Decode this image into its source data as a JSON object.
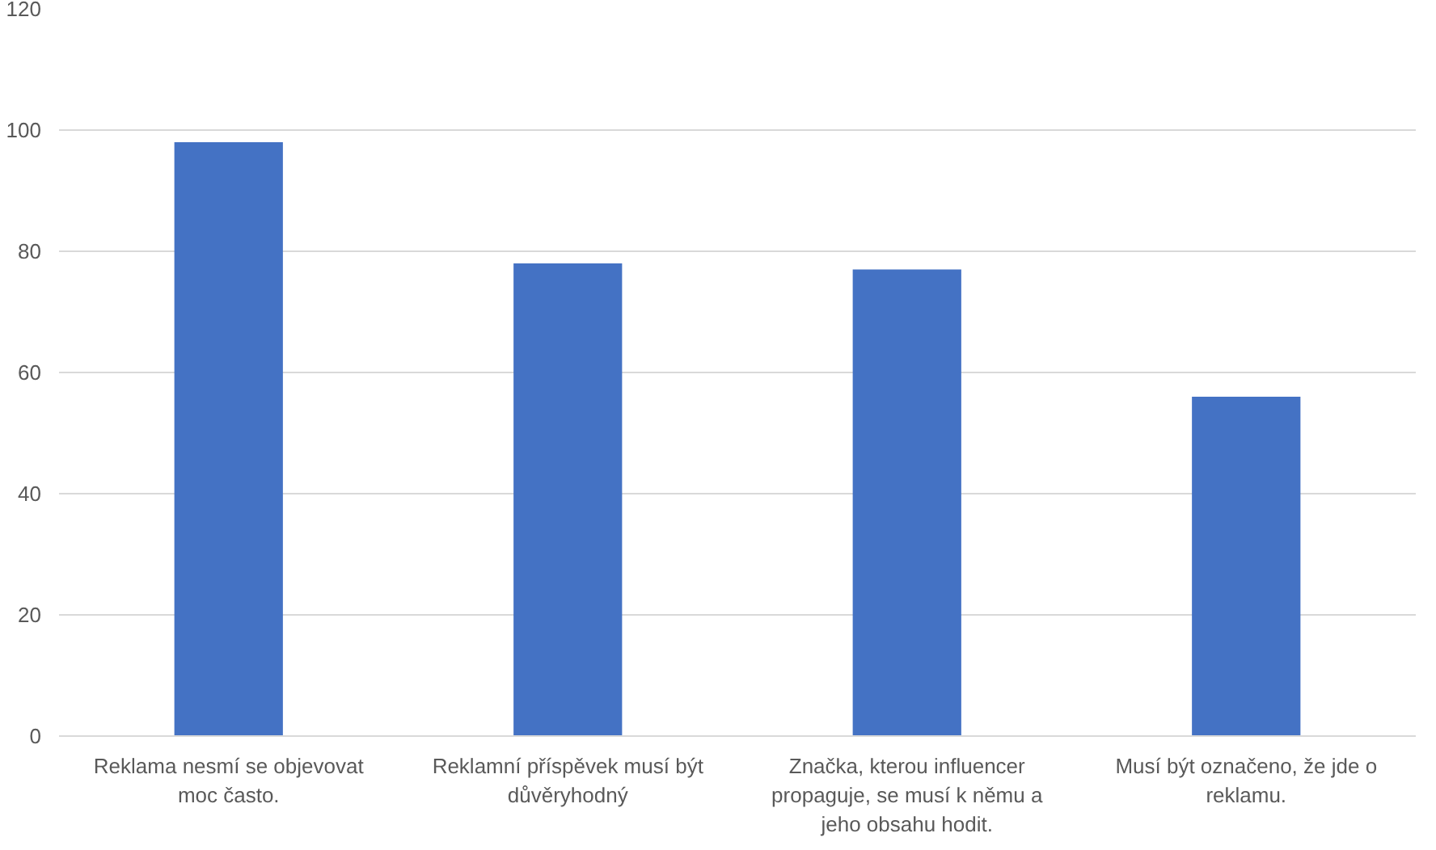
{
  "chart_data": {
    "type": "bar",
    "categories": [
      "Reklama nesmí se objevovat moc často.",
      "Reklamní příspěvek musí být důvěryhodný",
      "Značka, kterou influencer propaguje, se musí k němu a jeho obsahu hodit.",
      "Musí být označeno, že jde o reklamu."
    ],
    "values": [
      98,
      78,
      77,
      56
    ],
    "color": "#4472c4",
    "ylim": [
      0,
      120
    ],
    "yticks": [
      0,
      20,
      40,
      60,
      80,
      100,
      120
    ],
    "grid": "y"
  }
}
